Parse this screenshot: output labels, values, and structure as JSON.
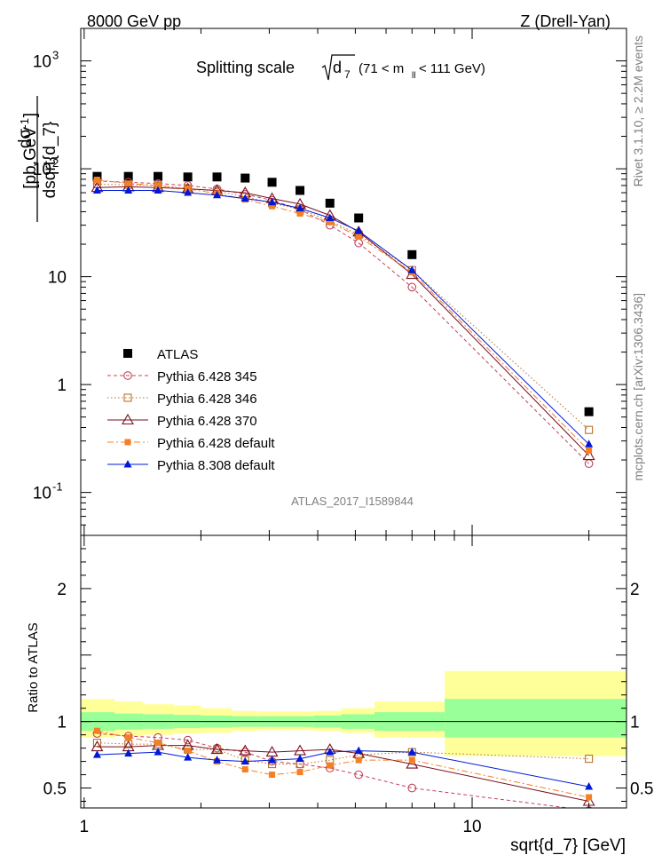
{
  "header": {
    "left": "8000 GeV pp",
    "right": "Z (Drell-Yan)"
  },
  "side_text": {
    "rivet": "Rivet 3.1.10, ≥ 2.2M events",
    "mcplots": "mcplots.cern.ch [arXiv:1306.3436]"
  },
  "main_plot": {
    "title_main": "Splitting scale",
    "title_sqrt_sym": "d",
    "title_sqrt_sub": "7",
    "title_range": "(71 < m",
    "title_range_sub": "ll",
    "title_range_end": " < 111 GeV)",
    "analysis_id": "ATLAS_2017_I1589844",
    "ylabel_num": "dσ",
    "ylabel_den": "dsqrt{d_7}",
    "ylabel_unit": "[pb,GeV",
    "ylabel_unit_exp": "-1",
    "ylabel_unit_end": "]"
  },
  "ratio_plot": {
    "ylabel": "Ratio to ATLAS",
    "xlabel": "sqrt{d_7} [GeV]"
  },
  "legend": [
    {
      "label": "ATLAS",
      "color": "#000000",
      "marker": "square-filled",
      "line": "none"
    },
    {
      "label": "Pythia 6.428 345",
      "color": "#c0445b",
      "marker": "circle-open",
      "line": "dashed"
    },
    {
      "label": "Pythia 6.428 346",
      "color": "#b8722c",
      "marker": "square-open",
      "line": "dotted"
    },
    {
      "label": "Pythia 6.428 370",
      "color": "#7a0f1f",
      "marker": "triangle-open",
      "line": "solid"
    },
    {
      "label": "Pythia 6.428 default",
      "color": "#f47f24",
      "marker": "square-filled",
      "line": "dashdot"
    },
    {
      "label": "Pythia 8.308 default",
      "color": "#0019d8",
      "marker": "triangle-filled",
      "line": "solid"
    }
  ],
  "chart_data": [
    {
      "type": "scatter",
      "title": "Splitting scale √d7 (71 < m_ll < 111 GeV)",
      "xlabel": "sqrt{d_7} [GeV]",
      "ylabel": "dσ/dsqrt{d_7} [pb,GeV^-1]",
      "xscale": "log",
      "yscale": "log",
      "xlim": [
        0.98,
        25
      ],
      "ylim": [
        0.04,
        2000
      ],
      "x_tick_labels": [
        "1",
        "10"
      ],
      "y_tick_labels": [
        "10^-1",
        "1",
        "10",
        "10^2",
        "10^3"
      ],
      "legend_position": "bottom-left",
      "x": [
        1.08,
        1.3,
        1.55,
        1.85,
        2.2,
        2.6,
        3.05,
        3.6,
        4.3,
        5.1,
        7.0,
        20.0
      ],
      "series": [
        {
          "name": "ATLAS",
          "values": [
            85,
            85,
            85,
            84,
            84,
            82,
            75,
            63,
            48,
            35,
            16,
            0.56
          ]
        },
        {
          "name": "Pythia 6.428 345",
          "values": [
            77,
            75,
            73,
            70,
            65,
            58,
            51,
            42,
            30,
            20.5,
            8.0,
            0.185
          ]
        },
        {
          "name": "Pythia 6.428 346",
          "values": [
            72,
            71,
            70,
            66,
            62,
            55,
            48,
            42,
            33,
            24.5,
            11.5,
            0.38
          ]
        },
        {
          "name": "Pythia 6.428 370",
          "values": [
            67,
            68,
            67,
            65,
            63,
            60,
            53,
            47,
            37,
            26,
            10.5,
            0.22
          ]
        },
        {
          "name": "Pythia 6.428 default",
          "values": [
            79,
            73,
            70,
            65,
            59,
            52,
            45,
            38.5,
            32,
            23.5,
            11,
            0.245
          ]
        },
        {
          "name": "Pythia 8.308 default",
          "values": [
            63,
            63,
            63,
            60,
            57,
            53,
            49,
            43,
            35,
            26.5,
            11.5,
            0.28
          ]
        }
      ]
    },
    {
      "type": "line",
      "ylabel": "Ratio to ATLAS",
      "xlabel": "sqrt{d_7} [GeV]",
      "xscale": "log",
      "xlim": [
        0.98,
        25
      ],
      "ylim": [
        0.35,
        2.4
      ],
      "y_tick_labels": [
        "0.5",
        "1",
        "2"
      ],
      "x_tick_labels": [
        "1",
        "10"
      ],
      "band_edges": [
        0.98,
        1.2,
        1.42,
        1.7,
        2.0,
        2.4,
        2.8,
        3.3,
        3.9,
        4.6,
        5.6,
        8.5,
        25
      ],
      "band_stat": [
        [
          0.93,
          1.07
        ],
        [
          0.94,
          1.06
        ],
        [
          0.945,
          1.055
        ],
        [
          0.95,
          1.05
        ],
        [
          0.955,
          1.045
        ],
        [
          0.96,
          1.04
        ],
        [
          0.96,
          1.04
        ],
        [
          0.96,
          1.04
        ],
        [
          0.955,
          1.045
        ],
        [
          0.945,
          1.055
        ],
        [
          0.93,
          1.07
        ],
        [
          0.88,
          1.17
        ],
        [
          0.88,
          1.17
        ]
      ],
      "band_total": [
        [
          0.88,
          1.17
        ],
        [
          0.89,
          1.15
        ],
        [
          0.9,
          1.13
        ],
        [
          0.91,
          1.12
        ],
        [
          0.915,
          1.1
        ],
        [
          0.93,
          1.08
        ],
        [
          0.935,
          1.075
        ],
        [
          0.935,
          1.075
        ],
        [
          0.93,
          1.08
        ],
        [
          0.915,
          1.1
        ],
        [
          0.88,
          1.15
        ],
        [
          0.74,
          1.38
        ],
        [
          0.74,
          1.38
        ]
      ],
      "x": [
        1.08,
        1.3,
        1.55,
        1.85,
        2.2,
        2.6,
        3.05,
        3.6,
        4.3,
        5.1,
        7.0,
        20.0
      ],
      "series": [
        {
          "name": "Pythia 6.428 345",
          "values": [
            0.91,
            0.89,
            0.88,
            0.86,
            0.8,
            0.77,
            0.7,
            0.68,
            0.65,
            0.6,
            0.5,
            0.33
          ]
        },
        {
          "name": "Pythia 6.428 346",
          "values": [
            0.84,
            0.83,
            0.83,
            0.79,
            0.79,
            0.71,
            0.68,
            0.68,
            0.71,
            0.75,
            0.77,
            0.72
          ]
        },
        {
          "name": "Pythia 6.428 370",
          "values": [
            0.81,
            0.81,
            0.82,
            0.82,
            0.79,
            0.78,
            0.77,
            0.78,
            0.79,
            0.76,
            0.68,
            0.4
          ]
        },
        {
          "name": "Pythia 6.428 default",
          "values": [
            0.93,
            0.88,
            0.84,
            0.78,
            0.7,
            0.64,
            0.6,
            0.62,
            0.67,
            0.71,
            0.71,
            0.43
          ]
        },
        {
          "name": "Pythia 8.308 default",
          "values": [
            0.75,
            0.76,
            0.77,
            0.73,
            0.71,
            0.7,
            0.71,
            0.72,
            0.77,
            0.78,
            0.77,
            0.51
          ]
        }
      ]
    }
  ]
}
